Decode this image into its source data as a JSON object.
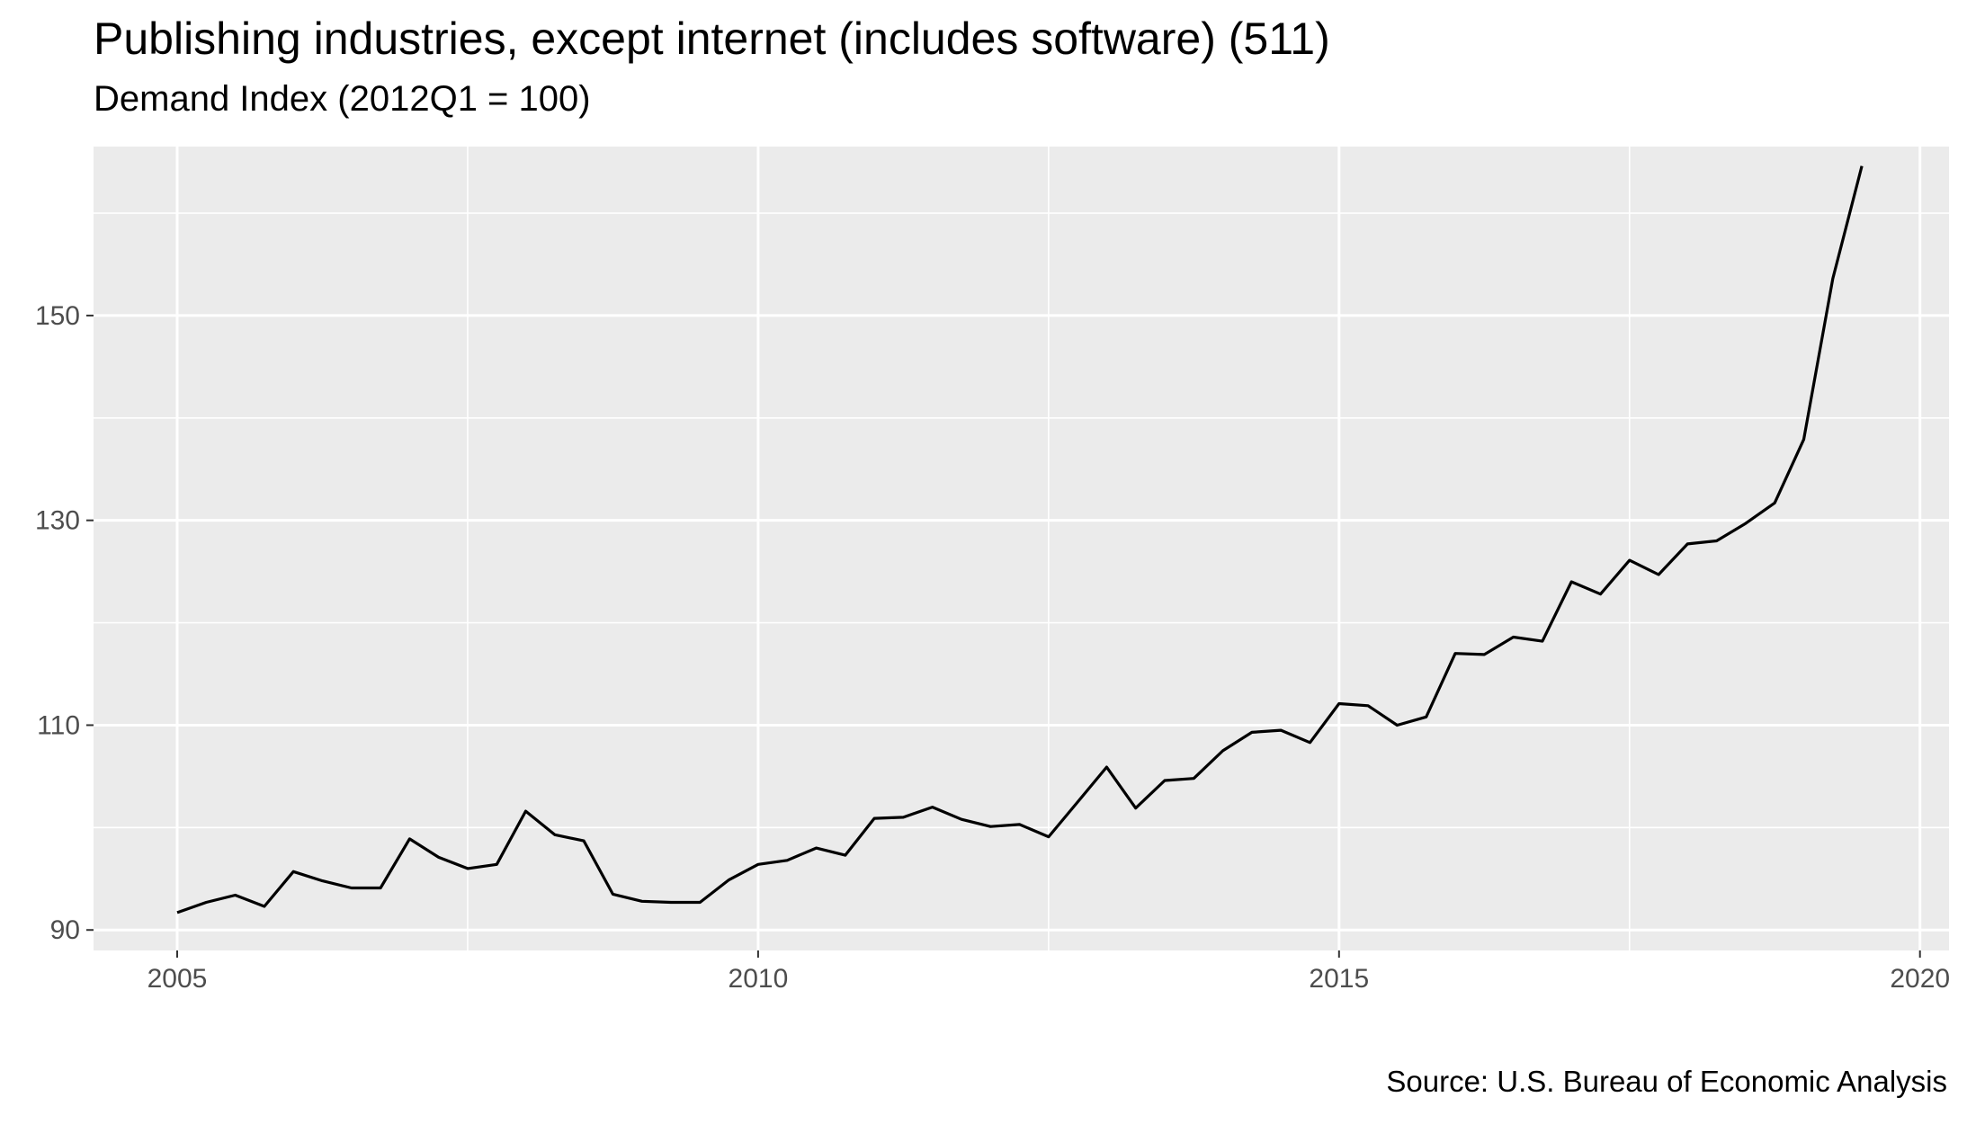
{
  "chart_data": {
    "type": "line",
    "title": "Publishing industries, except internet (includes software) (511)",
    "subtitle": "Demand Index (2012Q1 = 100)",
    "caption": "Source: U.S. Bureau of Economic Analysis",
    "xlabel": "",
    "ylabel": "",
    "x_ticks": [
      2005,
      2010,
      2015,
      2020
    ],
    "y_ticks": [
      90,
      110,
      130,
      150
    ],
    "xlim": [
      2004.28,
      2020.25
    ],
    "ylim": [
      88.0,
      166.5
    ],
    "grid": true,
    "line_color": "#000000",
    "panel_color": "#ebebeb",
    "series": [
      {
        "x": [
          2005.0,
          2005.25,
          2005.5,
          2005.75,
          2006.0,
          2006.25,
          2006.5,
          2006.75,
          2007.0,
          2007.25,
          2007.5,
          2007.75,
          2008.0,
          2008.25,
          2008.5,
          2008.75,
          2009.0,
          2009.25,
          2009.5,
          2009.75,
          2010.0,
          2010.25,
          2010.5,
          2010.75,
          2011.0,
          2011.25,
          2011.5,
          2011.75,
          2012.0,
          2012.25,
          2012.5,
          2012.75,
          2013.0,
          2013.25,
          2013.5,
          2013.75,
          2014.0,
          2014.25,
          2014.5,
          2014.75,
          2015.0,
          2015.25,
          2015.5,
          2015.75,
          2016.0,
          2016.25,
          2016.5,
          2016.75,
          2017.0,
          2017.25,
          2017.5,
          2017.75,
          2018.0,
          2018.25,
          2018.5,
          2018.75,
          2019.0,
          2019.25,
          2019.5
        ],
        "values": [
          91.7,
          92.7,
          93.4,
          92.3,
          95.7,
          94.8,
          94.1,
          94.1,
          98.9,
          97.1,
          96.0,
          96.4,
          101.6,
          99.3,
          98.7,
          93.5,
          92.8,
          92.7,
          92.7,
          94.9,
          96.4,
          96.8,
          98.0,
          97.3,
          100.9,
          101.0,
          102.0,
          100.8,
          100.1,
          100.3,
          99.1,
          102.5,
          105.9,
          101.9,
          104.6,
          104.8,
          107.5,
          109.3,
          109.5,
          108.3,
          112.1,
          111.9,
          110.0,
          110.8,
          117.0,
          116.9,
          118.6,
          118.2,
          124.0,
          122.8,
          126.1,
          124.7,
          127.7,
          128.0,
          129.7,
          131.7,
          137.9,
          153.6,
          164.6
        ]
      }
    ]
  }
}
